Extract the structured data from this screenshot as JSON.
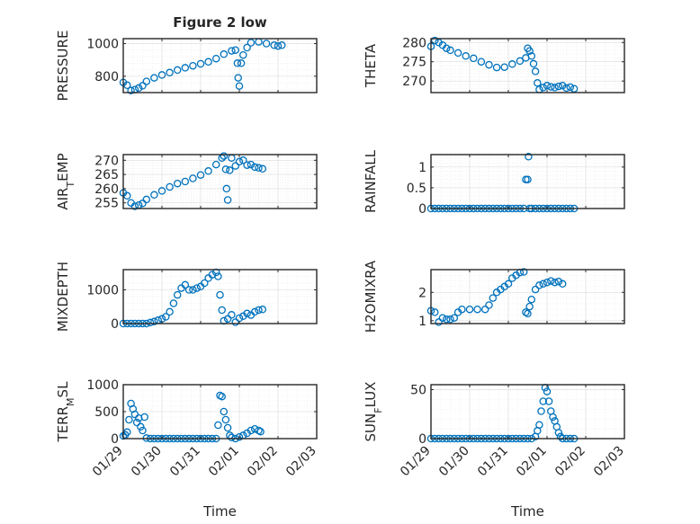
{
  "figure": {
    "title": "Figure 2 low",
    "xlabel": "Time",
    "x_tick_labels": [
      "01/29",
      "01/30",
      "01/31",
      "02/01",
      "02/02",
      "02/03"
    ],
    "marker_color": "#0072BD",
    "marker": "open-circle"
  },
  "chart_data": [
    {
      "type": "scatter",
      "position": "row1-left",
      "ylabel_parts": [
        {
          "t": "PRESSURE"
        }
      ],
      "xlim": [
        0,
        5
      ],
      "ylim": [
        700,
        1030
      ],
      "yticks": [
        800,
        1000
      ],
      "ytick_labels": [
        "800",
        "1000"
      ],
      "grid": true,
      "points": [
        [
          0,
          762
        ],
        [
          0.1,
          745
        ],
        [
          0.2,
          712
        ],
        [
          0.3,
          718
        ],
        [
          0.4,
          728
        ],
        [
          0.5,
          742
        ],
        [
          0.6,
          768
        ],
        [
          0.8,
          790
        ],
        [
          1.0,
          808
        ],
        [
          1.2,
          822
        ],
        [
          1.4,
          838
        ],
        [
          1.6,
          852
        ],
        [
          1.8,
          864
        ],
        [
          2.0,
          876
        ],
        [
          2.2,
          888
        ],
        [
          2.4,
          908
        ],
        [
          2.6,
          935
        ],
        [
          2.8,
          955
        ],
        [
          2.9,
          960
        ],
        [
          2.95,
          880
        ],
        [
          2.97,
          790
        ],
        [
          3.0,
          740
        ],
        [
          3.05,
          880
        ],
        [
          3.1,
          930
        ],
        [
          3.2,
          975
        ],
        [
          3.3,
          1005
        ],
        [
          3.5,
          1010
        ],
        [
          3.7,
          1000
        ],
        [
          3.9,
          990
        ],
        [
          4.0,
          985
        ],
        [
          4.1,
          990
        ]
      ]
    },
    {
      "type": "scatter",
      "position": "row1-right",
      "ylabel_parts": [
        {
          "t": "THETA"
        }
      ],
      "xlim": [
        0,
        5
      ],
      "ylim": [
        267,
        281
      ],
      "yticks": [
        270,
        275,
        280
      ],
      "ytick_labels": [
        "270",
        "275",
        "280"
      ],
      "grid": true,
      "points": [
        [
          0,
          279
        ],
        [
          0.1,
          280.5
        ],
        [
          0.2,
          280
        ],
        [
          0.3,
          279.3
        ],
        [
          0.4,
          278.5
        ],
        [
          0.5,
          278
        ],
        [
          0.7,
          277.3
        ],
        [
          0.9,
          276.5
        ],
        [
          1.1,
          275.9
        ],
        [
          1.3,
          275
        ],
        [
          1.5,
          274.2
        ],
        [
          1.7,
          273.5
        ],
        [
          1.9,
          273.6
        ],
        [
          2.1,
          274.4
        ],
        [
          2.3,
          275.2
        ],
        [
          2.45,
          276
        ],
        [
          2.5,
          278.5
        ],
        [
          2.55,
          277.8
        ],
        [
          2.6,
          276.5
        ],
        [
          2.65,
          274.5
        ],
        [
          2.7,
          272.5
        ],
        [
          2.75,
          269.5
        ],
        [
          2.8,
          267.8
        ],
        [
          2.9,
          268.3
        ],
        [
          3.0,
          268.8
        ],
        [
          3.1,
          268.5
        ],
        [
          3.2,
          268.3
        ],
        [
          3.3,
          268.6
        ],
        [
          3.4,
          268.8
        ],
        [
          3.5,
          268.2
        ],
        [
          3.6,
          268.4
        ],
        [
          3.7,
          268
        ]
      ]
    },
    {
      "type": "scatter",
      "position": "row2-left",
      "ylabel_parts": [
        {
          "t": "AIR"
        },
        {
          "t": "T",
          "sub": true
        },
        {
          "t": "EMP"
        }
      ],
      "xlim": [
        0,
        5
      ],
      "ylim": [
        253,
        272
      ],
      "yticks": [
        255,
        260,
        265,
        270
      ],
      "ytick_labels": [
        "255",
        "260",
        "265",
        "270"
      ],
      "grid": true,
      "points": [
        [
          0,
          258.5
        ],
        [
          0.1,
          257.5
        ],
        [
          0.2,
          255
        ],
        [
          0.3,
          253.8
        ],
        [
          0.4,
          254.2
        ],
        [
          0.5,
          254.8
        ],
        [
          0.6,
          256.2
        ],
        [
          0.8,
          257.8
        ],
        [
          1.0,
          259.2
        ],
        [
          1.2,
          260.6
        ],
        [
          1.4,
          261.8
        ],
        [
          1.6,
          262.5
        ],
        [
          1.8,
          263.6
        ],
        [
          2.0,
          264.8
        ],
        [
          2.2,
          266.2
        ],
        [
          2.4,
          268.5
        ],
        [
          2.55,
          270.8
        ],
        [
          2.6,
          271.5
        ],
        [
          2.65,
          266.8
        ],
        [
          2.67,
          260
        ],
        [
          2.7,
          256
        ],
        [
          2.75,
          266.5
        ],
        [
          2.8,
          270.8
        ],
        [
          2.9,
          268
        ],
        [
          3.0,
          269.5
        ],
        [
          3.1,
          270
        ],
        [
          3.2,
          268.3
        ],
        [
          3.3,
          268.5
        ],
        [
          3.4,
          267.6
        ],
        [
          3.5,
          267.3
        ],
        [
          3.6,
          267
        ]
      ]
    },
    {
      "type": "scatter",
      "position": "row2-right",
      "ylabel_parts": [
        {
          "t": "RAINFALL"
        }
      ],
      "xlim": [
        0,
        5
      ],
      "ylim": [
        0,
        1.3
      ],
      "yticks": [
        0,
        0.5,
        1
      ],
      "ytick_labels": [
        "0",
        "0.5",
        "1"
      ],
      "grid": true,
      "points": [
        [
          0,
          0
        ],
        [
          0.1,
          0
        ],
        [
          0.2,
          0
        ],
        [
          0.3,
          0
        ],
        [
          0.4,
          0
        ],
        [
          0.5,
          0
        ],
        [
          0.6,
          0
        ],
        [
          0.7,
          0
        ],
        [
          0.8,
          0
        ],
        [
          0.9,
          0
        ],
        [
          1.0,
          0
        ],
        [
          1.1,
          0
        ],
        [
          1.2,
          0
        ],
        [
          1.3,
          0
        ],
        [
          1.4,
          0
        ],
        [
          1.5,
          0
        ],
        [
          1.6,
          0
        ],
        [
          1.7,
          0
        ],
        [
          1.8,
          0
        ],
        [
          1.9,
          0
        ],
        [
          2.0,
          0
        ],
        [
          2.1,
          0
        ],
        [
          2.2,
          0
        ],
        [
          2.3,
          0
        ],
        [
          2.4,
          0
        ],
        [
          2.45,
          0.7
        ],
        [
          2.5,
          0.7
        ],
        [
          2.52,
          1.25
        ],
        [
          2.55,
          0
        ],
        [
          2.6,
          0
        ],
        [
          2.7,
          0
        ],
        [
          2.8,
          0
        ],
        [
          2.9,
          0
        ],
        [
          3.0,
          0
        ],
        [
          3.1,
          0
        ],
        [
          3.2,
          0
        ],
        [
          3.3,
          0
        ],
        [
          3.4,
          0
        ],
        [
          3.5,
          0
        ],
        [
          3.6,
          0
        ],
        [
          3.7,
          0
        ]
      ]
    },
    {
      "type": "scatter",
      "position": "row3-left",
      "ylabel_parts": [
        {
          "t": "MIXDEPTH"
        }
      ],
      "xlim": [
        0,
        5
      ],
      "ylim": [
        0,
        1600
      ],
      "yticks": [
        0,
        1000
      ],
      "ytick_labels": [
        "0",
        "1000"
      ],
      "grid": true,
      "points": [
        [
          0,
          0
        ],
        [
          0.1,
          0
        ],
        [
          0.2,
          0
        ],
        [
          0.3,
          0
        ],
        [
          0.4,
          0
        ],
        [
          0.5,
          0
        ],
        [
          0.6,
          0
        ],
        [
          0.7,
          30
        ],
        [
          0.8,
          60
        ],
        [
          0.9,
          100
        ],
        [
          1.0,
          140
        ],
        [
          1.1,
          200
        ],
        [
          1.2,
          350
        ],
        [
          1.3,
          600
        ],
        [
          1.4,
          850
        ],
        [
          1.5,
          1050
        ],
        [
          1.6,
          1150
        ],
        [
          1.7,
          1000
        ],
        [
          1.8,
          1000
        ],
        [
          1.9,
          1050
        ],
        [
          2.0,
          1100
        ],
        [
          2.1,
          1200
        ],
        [
          2.2,
          1350
        ],
        [
          2.3,
          1450
        ],
        [
          2.4,
          1520
        ],
        [
          2.45,
          1400
        ],
        [
          2.5,
          850
        ],
        [
          2.55,
          400
        ],
        [
          2.6,
          80
        ],
        [
          2.7,
          140
        ],
        [
          2.8,
          260
        ],
        [
          2.9,
          40
        ],
        [
          3.0,
          160
        ],
        [
          3.1,
          220
        ],
        [
          3.2,
          300
        ],
        [
          3.3,
          250
        ],
        [
          3.4,
          350
        ],
        [
          3.5,
          400
        ],
        [
          3.6,
          420
        ]
      ]
    },
    {
      "type": "scatter",
      "position": "row3-right",
      "ylabel_parts": [
        {
          "t": "H2OMIXRA"
        }
      ],
      "xlim": [
        0,
        5
      ],
      "ylim": [
        0.9,
        2.8
      ],
      "yticks": [
        1,
        2
      ],
      "ytick_labels": [
        "1",
        "2"
      ],
      "grid": true,
      "points": [
        [
          0,
          1.35
        ],
        [
          0.1,
          1.3
        ],
        [
          0.2,
          0.95
        ],
        [
          0.3,
          1.1
        ],
        [
          0.4,
          1.05
        ],
        [
          0.5,
          1.05
        ],
        [
          0.6,
          1.1
        ],
        [
          0.7,
          1.3
        ],
        [
          0.8,
          1.4
        ],
        [
          1.0,
          1.4
        ],
        [
          1.2,
          1.4
        ],
        [
          1.4,
          1.4
        ],
        [
          1.5,
          1.55
        ],
        [
          1.6,
          1.8
        ],
        [
          1.7,
          2.0
        ],
        [
          1.8,
          2.1
        ],
        [
          1.9,
          2.2
        ],
        [
          2.0,
          2.3
        ],
        [
          2.1,
          2.5
        ],
        [
          2.2,
          2.6
        ],
        [
          2.3,
          2.7
        ],
        [
          2.4,
          2.72
        ],
        [
          2.45,
          1.3
        ],
        [
          2.5,
          1.25
        ],
        [
          2.55,
          1.5
        ],
        [
          2.6,
          1.75
        ],
        [
          2.7,
          2.1
        ],
        [
          2.8,
          2.25
        ],
        [
          2.9,
          2.3
        ],
        [
          3.0,
          2.35
        ],
        [
          3.1,
          2.4
        ],
        [
          3.2,
          2.35
        ],
        [
          3.3,
          2.38
        ],
        [
          3.4,
          2.3
        ]
      ]
    },
    {
      "type": "scatter",
      "position": "row4-left",
      "ylabel_parts": [
        {
          "t": "TERR"
        },
        {
          "t": "M",
          "sub": true
        },
        {
          "t": "SL"
        }
      ],
      "xlim": [
        0,
        5
      ],
      "ylim": [
        0,
        1000
      ],
      "yticks": [
        0,
        500,
        1000
      ],
      "ytick_labels": [
        "0",
        "500",
        "1000"
      ],
      "grid": true,
      "points": [
        [
          0,
          50
        ],
        [
          0.05,
          70
        ],
        [
          0.1,
          120
        ],
        [
          0.15,
          350
        ],
        [
          0.2,
          650
        ],
        [
          0.25,
          550
        ],
        [
          0.3,
          450
        ],
        [
          0.35,
          300
        ],
        [
          0.4,
          380
        ],
        [
          0.45,
          220
        ],
        [
          0.5,
          150
        ],
        [
          0.55,
          400
        ],
        [
          0.6,
          10
        ],
        [
          0.7,
          0
        ],
        [
          0.8,
          0
        ],
        [
          0.9,
          0
        ],
        [
          1.0,
          0
        ],
        [
          1.1,
          0
        ],
        [
          1.2,
          0
        ],
        [
          1.3,
          0
        ],
        [
          1.4,
          0
        ],
        [
          1.5,
          0
        ],
        [
          1.6,
          0
        ],
        [
          1.7,
          0
        ],
        [
          1.8,
          0
        ],
        [
          1.9,
          0
        ],
        [
          2.0,
          0
        ],
        [
          2.1,
          0
        ],
        [
          2.2,
          0
        ],
        [
          2.3,
          0
        ],
        [
          2.4,
          0
        ],
        [
          2.45,
          250
        ],
        [
          2.5,
          800
        ],
        [
          2.55,
          780
        ],
        [
          2.6,
          500
        ],
        [
          2.65,
          350
        ],
        [
          2.7,
          200
        ],
        [
          2.75,
          60
        ],
        [
          2.8,
          20
        ],
        [
          2.9,
          0
        ],
        [
          3.0,
          30
        ],
        [
          3.1,
          60
        ],
        [
          3.2,
          100
        ],
        [
          3.3,
          150
        ],
        [
          3.4,
          180
        ],
        [
          3.5,
          150
        ],
        [
          3.55,
          130
        ]
      ]
    },
    {
      "type": "scatter",
      "position": "row4-right",
      "ylabel_parts": [
        {
          "t": "SUN"
        },
        {
          "t": "F",
          "sub": true
        },
        {
          "t": "LUX"
        }
      ],
      "xlim": [
        0,
        5
      ],
      "ylim": [
        0,
        55
      ],
      "yticks": [
        0,
        50
      ],
      "ytick_labels": [
        "0",
        "50"
      ],
      "grid": true,
      "points": [
        [
          0,
          0
        ],
        [
          0.1,
          0
        ],
        [
          0.2,
          0
        ],
        [
          0.3,
          0
        ],
        [
          0.4,
          0
        ],
        [
          0.5,
          0
        ],
        [
          0.6,
          0
        ],
        [
          0.7,
          0
        ],
        [
          0.8,
          0
        ],
        [
          0.9,
          0
        ],
        [
          1.0,
          0
        ],
        [
          1.1,
          0
        ],
        [
          1.2,
          0
        ],
        [
          1.3,
          0
        ],
        [
          1.4,
          0
        ],
        [
          1.5,
          0
        ],
        [
          1.6,
          0
        ],
        [
          1.7,
          0
        ],
        [
          1.8,
          0
        ],
        [
          1.9,
          0
        ],
        [
          2.0,
          0
        ],
        [
          2.1,
          0
        ],
        [
          2.2,
          0
        ],
        [
          2.3,
          0
        ],
        [
          2.4,
          0
        ],
        [
          2.5,
          0
        ],
        [
          2.6,
          0
        ],
        [
          2.7,
          2
        ],
        [
          2.75,
          8
        ],
        [
          2.8,
          14
        ],
        [
          2.85,
          28
        ],
        [
          2.9,
          38
        ],
        [
          2.95,
          52
        ],
        [
          3.0,
          48
        ],
        [
          3.05,
          38
        ],
        [
          3.1,
          28
        ],
        [
          3.15,
          22
        ],
        [
          3.2,
          18
        ],
        [
          3.25,
          12
        ],
        [
          3.3,
          6
        ],
        [
          3.35,
          2
        ],
        [
          3.4,
          0
        ],
        [
          3.5,
          0
        ],
        [
          3.6,
          0
        ],
        [
          3.7,
          0
        ]
      ]
    }
  ]
}
